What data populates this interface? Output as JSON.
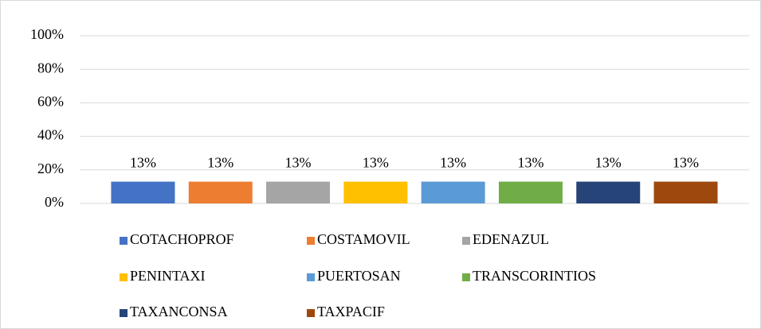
{
  "chart_data": {
    "type": "bar",
    "categories": [
      null
    ],
    "series": [
      {
        "name": "COTACHOPROF",
        "color": "#4472c4",
        "values": [
          13
        ],
        "value_labels": [
          "13%"
        ]
      },
      {
        "name": "COSTAMOVIL",
        "color": "#ed7d31",
        "values": [
          13
        ],
        "value_labels": [
          "13%"
        ]
      },
      {
        "name": "EDENAZUL",
        "color": "#a5a5a5",
        "values": [
          13
        ],
        "value_labels": [
          "13%"
        ]
      },
      {
        "name": "PENINTAXI",
        "color": "#ffc000",
        "values": [
          13
        ],
        "value_labels": [
          "13%"
        ]
      },
      {
        "name": "PUERTOSAN",
        "color": "#5b9bd5",
        "values": [
          13
        ],
        "value_labels": [
          "13%"
        ]
      },
      {
        "name": "TRANSCORINTIOS",
        "color": "#70ad47",
        "values": [
          13
        ],
        "value_labels": [
          "13%"
        ]
      },
      {
        "name": "TAXANCONSA",
        "color": "#264478",
        "values": [
          13
        ],
        "value_labels": [
          "13%"
        ]
      },
      {
        "name": "TAXPACIF",
        "color": "#9e480e",
        "values": [
          13
        ],
        "value_labels": [
          "13%"
        ]
      }
    ],
    "ylim": [
      0,
      100
    ],
    "yticks": [
      {
        "value": 0,
        "label": "0%"
      },
      {
        "value": 20,
        "label": "20%"
      },
      {
        "value": 40,
        "label": "40%"
      },
      {
        "value": 60,
        "label": "60%"
      },
      {
        "value": 80,
        "label": "80%"
      },
      {
        "value": 100,
        "label": "100%"
      }
    ],
    "grid": true,
    "legend": "bottom"
  }
}
